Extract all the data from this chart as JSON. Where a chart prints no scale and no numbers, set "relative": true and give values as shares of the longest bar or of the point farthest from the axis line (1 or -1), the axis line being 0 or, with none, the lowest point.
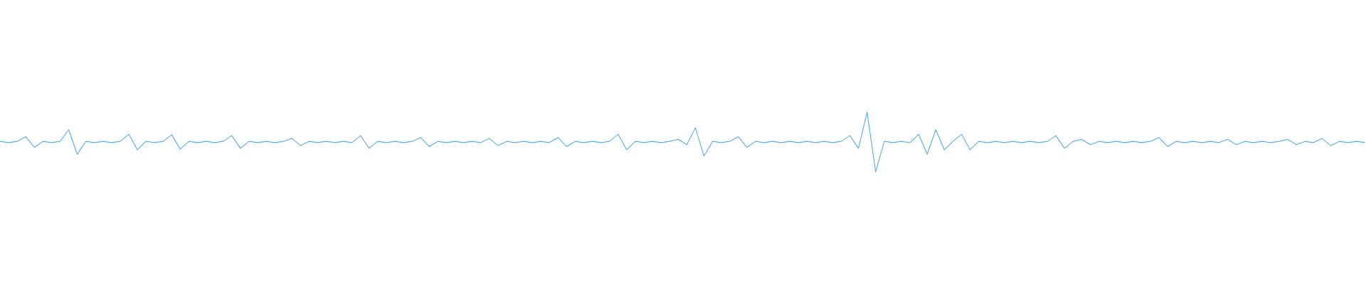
{
  "chart_data": {
    "type": "line",
    "relative": true,
    "color": "#5aaee8",
    "marker": "none",
    "line_style": "solid",
    "categories": [
      null,
      null,
      null,
      null,
      null,
      null,
      null,
      null,
      null,
      null,
      null,
      null,
      null,
      null,
      null,
      null,
      null,
      null,
      null,
      null,
      null,
      null,
      null,
      null,
      null,
      null,
      null,
      null,
      null,
      null,
      null,
      null,
      null,
      null,
      null,
      null,
      null,
      null,
      null,
      null,
      null,
      null,
      null,
      null,
      null,
      null,
      null,
      null,
      null,
      null,
      null,
      null,
      null,
      null,
      null,
      null,
      null,
      null,
      null,
      null,
      null,
      null,
      null,
      null,
      null,
      null,
      null,
      null,
      null,
      null,
      null,
      null,
      null,
      null,
      null,
      null,
      null,
      null,
      null,
      null,
      null,
      null,
      null,
      null,
      null,
      null,
      null,
      null,
      null,
      null,
      null,
      null,
      null,
      null,
      null,
      null,
      null,
      null,
      null,
      null,
      null,
      null,
      null,
      null,
      null,
      null,
      null,
      null,
      null,
      null,
      null,
      null,
      null,
      null,
      null,
      null,
      null,
      null,
      null,
      null,
      null,
      null,
      null,
      null,
      null,
      null,
      null,
      null,
      null,
      null,
      null,
      null,
      null,
      null,
      null,
      null,
      null,
      null,
      null,
      null,
      null,
      null,
      null,
      null,
      null,
      null,
      null,
      null,
      null,
      null,
      null,
      null,
      null,
      null,
      null,
      null,
      null,
      null,
      null,
      null
    ],
    "values": [
      0.51,
      0.49,
      0.51,
      0.59,
      0.41,
      0.51,
      0.49,
      0.51,
      0.705,
      0.295,
      0.51,
      0.49,
      0.51,
      0.49,
      0.51,
      0.63,
      0.37,
      0.51,
      0.49,
      0.51,
      0.62,
      0.38,
      0.51,
      0.49,
      0.51,
      0.49,
      0.51,
      0.605,
      0.395,
      0.51,
      0.49,
      0.51,
      0.49,
      0.51,
      0.56,
      0.44,
      0.51,
      0.49,
      0.51,
      0.49,
      0.51,
      0.49,
      0.605,
      0.395,
      0.51,
      0.49,
      0.51,
      0.49,
      0.51,
      0.575,
      0.425,
      0.51,
      0.49,
      0.51,
      0.49,
      0.51,
      0.49,
      0.56,
      0.44,
      0.51,
      0.49,
      0.51,
      0.49,
      0.51,
      0.49,
      0.575,
      0.425,
      0.51,
      0.49,
      0.51,
      0.49,
      0.51,
      0.63,
      0.37,
      0.51,
      0.49,
      0.51,
      0.49,
      0.51,
      0.545,
      0.455,
      0.735,
      0.265,
      0.51,
      0.49,
      0.51,
      0.59,
      0.41,
      0.51,
      0.49,
      0.51,
      0.49,
      0.51,
      0.49,
      0.51,
      0.49,
      0.51,
      0.49,
      0.51,
      0.605,
      0.395,
      1,
      0,
      0.51,
      0.49,
      0.51,
      0.49,
      0.63,
      0.295,
      0.705,
      0.37,
      0.51,
      0.63,
      0.37,
      0.51,
      0.49,
      0.51,
      0.49,
      0.51,
      0.49,
      0.51,
      0.49,
      0.51,
      0.605,
      0.395,
      0.51,
      0.545,
      0.455,
      0.51,
      0.49,
      0.51,
      0.49,
      0.51,
      0.49,
      0.51,
      0.575,
      0.425,
      0.51,
      0.49,
      0.51,
      0.49,
      0.51,
      0.49,
      0.545,
      0.455,
      0.51,
      0.49,
      0.51,
      0.49,
      0.51,
      0.545,
      0.455,
      0.51,
      0.49,
      0.56,
      0.44,
      0.51,
      0.49,
      0.51,
      0.49
    ]
  }
}
